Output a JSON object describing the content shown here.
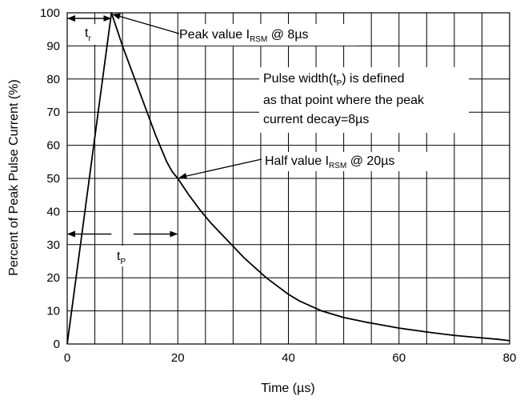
{
  "chart_data": {
    "type": "line",
    "title": "",
    "xlabel": "Time (µs)",
    "ylabel": "Percent of Peak Pulse Current (%)",
    "xlim": [
      0,
      80
    ],
    "ylim": [
      0,
      100
    ],
    "xticks": [
      0,
      20,
      40,
      60,
      80
    ],
    "yticks": [
      0,
      10,
      20,
      30,
      40,
      50,
      60,
      70,
      80,
      90,
      100
    ],
    "grid": true,
    "series": [
      {
        "x": [
          0,
          8,
          9,
          10,
          11,
          12,
          13,
          14,
          15,
          16,
          17,
          18,
          19,
          20,
          22,
          24,
          26,
          28,
          30,
          32,
          34,
          36,
          38,
          40,
          42,
          44,
          46,
          48,
          50,
          52,
          54,
          56,
          58,
          60,
          63,
          66,
          70,
          74,
          78,
          80
        ],
        "y": [
          0,
          100,
          95,
          90,
          85.5,
          81,
          76.5,
          72,
          67.5,
          63,
          59,
          55,
          52,
          50,
          45,
          40.5,
          36.5,
          33,
          29.5,
          26,
          23,
          20,
          17.5,
          15,
          13,
          11.5,
          10,
          9,
          8,
          7.3,
          6.6,
          6,
          5.4,
          4.8,
          4.1,
          3.4,
          2.6,
          2,
          1.4,
          1
        ]
      }
    ],
    "annotations": {
      "tr": {
        "main": "t",
        "sub": "r"
      },
      "tp": {
        "main": "t",
        "sub": "P"
      },
      "peak": {
        "pre": "Peak value I",
        "sub": "RSM",
        "post": " @ 8µs"
      },
      "pulse_line1": {
        "pre": "Pulse width(t",
        "sub": "P",
        "post": ") is defined"
      },
      "pulse_line2": "as that point where the peak",
      "pulse_line3": "current decay=8µs",
      "half": {
        "pre": "Half  value I",
        "sub": "RSM",
        "post": " @ 20µs"
      }
    }
  }
}
